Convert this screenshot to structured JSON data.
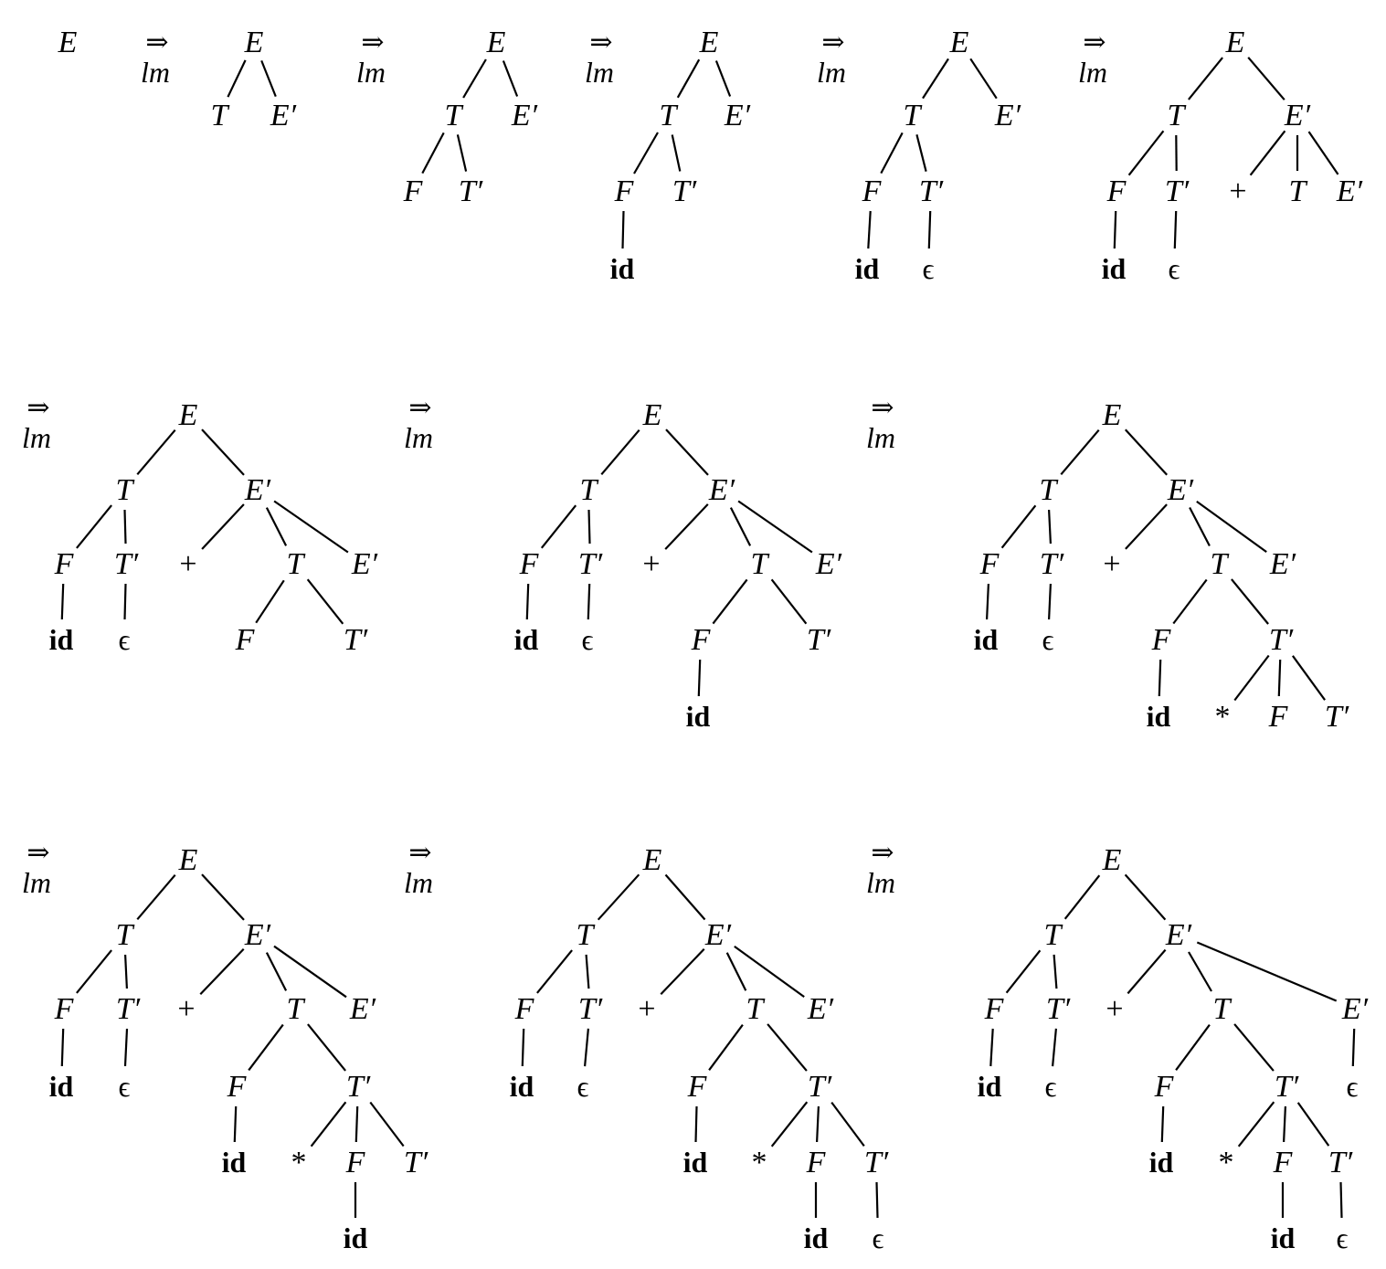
{
  "labels": {
    "E": "E",
    "Ep": "E′",
    "T": "T",
    "Tp": "T′",
    "F": "F",
    "id": "id",
    "eps": "ϵ",
    "plus": "+",
    "star": "*"
  },
  "arrow": {
    "symbol": "⇒",
    "subscript": "lm"
  },
  "steps": [
    "E",
    "T E'",
    "F T' E'",
    "id T' E'",
    "id E'",
    "id + T E'",
    "id + F T' E'",
    "id + id T' E'",
    "id + id * F T' E'",
    "id + id * id T' E'",
    "id + id * id E'",
    "id + id * id"
  ]
}
